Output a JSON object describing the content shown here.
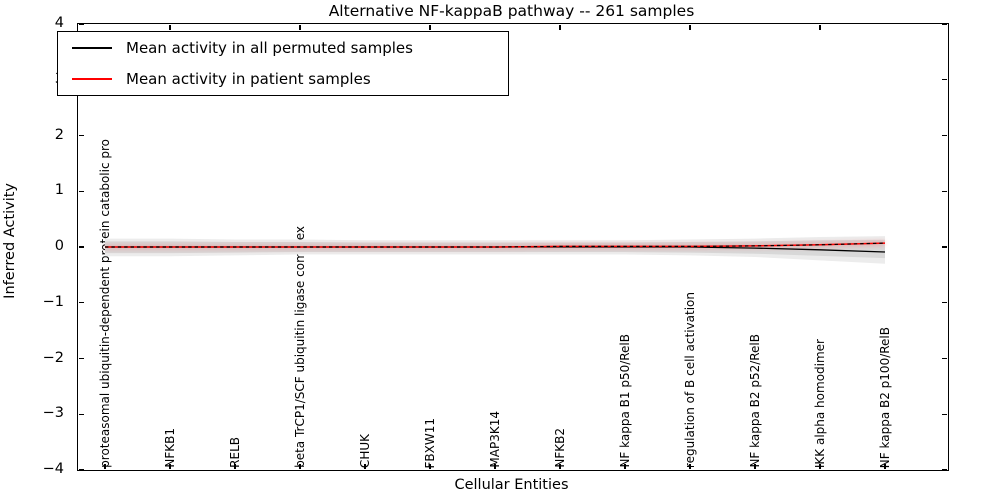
{
  "chart_data": {
    "type": "line",
    "title": "Alternative NF-kappaB pathway -- 261 samples",
    "xlabel": "Cellular Entities",
    "ylabel": "Inferred Activity",
    "ylim": [
      -4,
      4
    ],
    "yticks": [
      4,
      3,
      2,
      1,
      0,
      -1,
      -2,
      -3,
      -4
    ],
    "grid": false,
    "legend_position": "upper left",
    "background_color": "#ffffff",
    "categories": [
      "proteasomal ubiquitin-dependent protein catabolic pro",
      "NFKB1",
      "RELB",
      "beta TrCP1/SCF ubiquitin ligase complex",
      "CHUK",
      "FBXW11",
      "MAP3K14",
      "NFKB2",
      "NF kappa B1 p50/RelB",
      "regulation of B cell activation",
      "NF kappa B2 p52/RelB",
      "IKK alpha homodimer",
      "NF kappa B2 p100/RelB"
    ],
    "series": [
      {
        "name": "Mean activity in all permuted samples",
        "color": "#000000",
        "style": "solid",
        "values": [
          0,
          0,
          0,
          0,
          0,
          0,
          0,
          0,
          0,
          0,
          -0.02,
          -0.05,
          -0.09
        ]
      },
      {
        "name": "Mean activity in patient samples",
        "color": "#ff0000",
        "style": "solid",
        "values": [
          0,
          0,
          0,
          0,
          0,
          0,
          0,
          0.01,
          0.01,
          0.01,
          0.02,
          0.04,
          0.07
        ]
      }
    ],
    "dashed_overlay": {
      "color": "#000000",
      "style": "dashed",
      "values": [
        0,
        0,
        0,
        0,
        0,
        0,
        0,
        0.01,
        0.01,
        0.01,
        0.02,
        0.04,
        0.07
      ]
    },
    "permutation_band": {
      "color": "#d8d8d8",
      "hi": [
        0.1,
        0.1,
        0.09,
        0.09,
        0.08,
        0.08,
        0.08,
        0.08,
        0.08,
        0.09,
        0.1,
        0.12,
        0.13
      ],
      "lo": [
        -0.11,
        -0.11,
        -0.1,
        -0.09,
        -0.09,
        -0.09,
        -0.09,
        -0.09,
        -0.09,
        -0.1,
        -0.12,
        -0.16,
        -0.2
      ]
    }
  }
}
